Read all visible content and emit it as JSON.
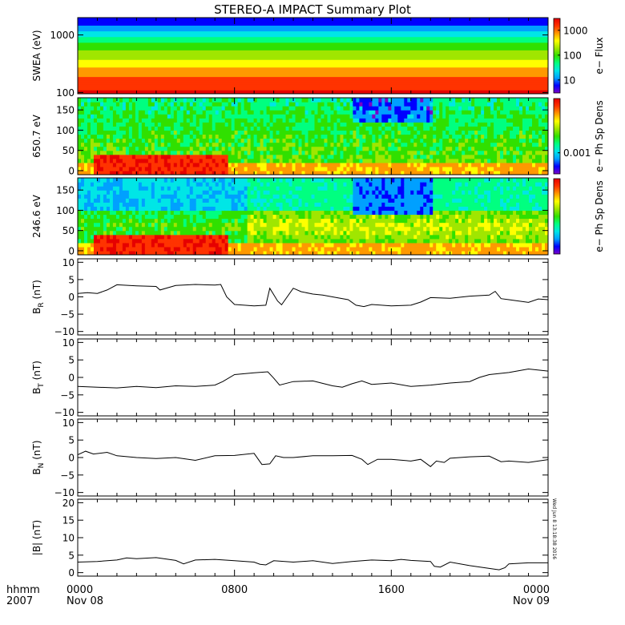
{
  "title": "STEREO-A IMPACT Summary Plot",
  "timestamp_vertical": "Wed Jun  8 13:18:38 2016",
  "x_axis": {
    "row1_label": "hhmm",
    "row2_label": "2007",
    "range_hours": [
      0,
      24
    ],
    "ticks": [
      {
        "hours": 0,
        "time": "0000",
        "date": "Nov 08"
      },
      {
        "hours": 8,
        "time": "0800",
        "date": ""
      },
      {
        "hours": 16,
        "time": "1600",
        "date": ""
      },
      {
        "hours": 24,
        "time": "0000",
        "date": "Nov 09"
      }
    ]
  },
  "colors": {
    "colormap": [
      "#7a00c8",
      "#0000ff",
      "#00a0ff",
      "#00e6e6",
      "#00ff80",
      "#30e000",
      "#a0e600",
      "#ffff00",
      "#ff9900",
      "#ff3300",
      "#e60000"
    ],
    "line": "#000000",
    "axes": "#000000"
  },
  "chart_data": [
    {
      "type": "heatmap",
      "name": "swea",
      "ylabel": "SWEA (eV)",
      "yscale": "log",
      "ylim": [
        95,
        2000
      ],
      "ytick_labels": [
        "100",
        "1000"
      ],
      "ytick_values": [
        100,
        1000
      ],
      "colorbar": {
        "label": "e− Flux",
        "scale": "log",
        "range": [
          3,
          3000
        ],
        "tick_labels": [
          "10",
          "100",
          "1000"
        ],
        "tick_values": [
          10,
          100,
          1000
        ]
      },
      "value_profile_by_energy": [
        [
          100,
          2500
        ],
        [
          150,
          1500
        ],
        [
          250,
          600
        ],
        [
          400,
          250
        ],
        [
          650,
          100
        ],
        [
          1000,
          30
        ],
        [
          1500,
          8
        ],
        [
          2000,
          4
        ]
      ]
    },
    {
      "type": "heatmap",
      "name": "pad650",
      "ylabel": "650.7 eV",
      "ylim": [
        -10,
        180
      ],
      "ytick_labels": [
        "0",
        "50",
        "100",
        "150"
      ],
      "ytick_values": [
        0,
        50,
        100,
        150
      ],
      "colorbar": {
        "label": "e− Ph Sp Dens",
        "tick_labels": [
          "0.001"
        ],
        "tick_values": [
          0.001
        ]
      }
    },
    {
      "type": "heatmap",
      "name": "pad246",
      "ylabel": "246.6 eV",
      "ylim": [
        -10,
        180
      ],
      "ytick_labels": [
        "0",
        "50",
        "100",
        "150"
      ],
      "ytick_values": [
        0,
        50,
        100,
        150
      ],
      "colorbar": {
        "label": "e− Ph Sp Dens",
        "tick_labels": [],
        "tick_values": []
      }
    },
    {
      "type": "line",
      "name": "br",
      "ylabel_main": "B",
      "ylabel_sub": "R",
      "ylabel_unit": " (nT)",
      "ylim": [
        -11,
        11
      ],
      "ytick_labels": [
        "−10",
        "−5",
        "0",
        "5",
        "10"
      ],
      "ytick_values": [
        -10,
        -5,
        0,
        5,
        10
      ],
      "x": [
        0,
        0.5,
        1,
        1.5,
        2,
        3,
        4,
        4.2,
        5,
        6,
        7,
        7.3,
        7.6,
        8,
        9,
        9.6,
        9.8,
        10.2,
        10.4,
        11,
        11.4,
        12,
        12.5,
        13,
        13.8,
        14.2,
        14.6,
        15,
        16,
        17,
        17.5,
        18,
        19,
        20,
        21,
        21.3,
        21.6,
        22,
        23,
        23.5,
        24
      ],
      "y": [
        1,
        1.2,
        1,
        2,
        3.5,
        3.2,
        3,
        2,
        3.3,
        3.6,
        3.4,
        3.6,
        0,
        -2.2,
        -2.6,
        -2.4,
        2.5,
        -1.2,
        -2.3,
        2.5,
        1.5,
        0.8,
        0.5,
        0,
        -0.8,
        -2.4,
        -2.8,
        -2.2,
        -2.6,
        -2.4,
        -1.5,
        -0.2,
        -0.4,
        0.2,
        0.5,
        1.6,
        -0.5,
        -0.8,
        -1.6,
        -0.6,
        -0.8
      ]
    },
    {
      "type": "line",
      "name": "bt",
      "ylabel_main": "B",
      "ylabel_sub": "T",
      "ylabel_unit": " (nT)",
      "ylim": [
        -11,
        11
      ],
      "ytick_labels": [
        "−10",
        "−5",
        "0",
        "5",
        "10"
      ],
      "ytick_values": [
        -10,
        -5,
        0,
        5,
        10
      ],
      "x": [
        0,
        1,
        2,
        3,
        4,
        5,
        6,
        7,
        7.4,
        8,
        9,
        9.7,
        10,
        10.3,
        11,
        12,
        13,
        13.5,
        14,
        14.5,
        15,
        16,
        17,
        18,
        19,
        20,
        20.5,
        21,
        22,
        23,
        24
      ],
      "y": [
        -2.6,
        -2.8,
        -3,
        -2.6,
        -2.9,
        -2.4,
        -2.6,
        -2.2,
        -1.2,
        0.8,
        1.3,
        1.6,
        -0.2,
        -2.2,
        -1.2,
        -1,
        -2.4,
        -2.8,
        -1.8,
        -1,
        -2,
        -1.6,
        -2.6,
        -2.2,
        -1.6,
        -1.2,
        0,
        0.8,
        1.4,
        2.4,
        1.8
      ]
    },
    {
      "type": "line",
      "name": "bn",
      "ylabel_main": "B",
      "ylabel_sub": "N",
      "ylabel_unit": " (nT)",
      "ylim": [
        -11,
        11
      ],
      "ytick_labels": [
        "−10",
        "−5",
        "0",
        "5",
        "10"
      ],
      "ytick_values": [
        -10,
        -5,
        0,
        5,
        10
      ],
      "x": [
        0,
        0.4,
        0.8,
        1.5,
        2,
        3,
        4,
        5,
        6,
        7,
        8,
        9,
        9.4,
        9.8,
        10.1,
        10.5,
        11,
        12,
        13,
        14,
        14.5,
        14.8,
        15.3,
        16,
        17,
        17.5,
        18,
        18.3,
        18.7,
        19,
        20,
        21,
        21.6,
        22,
        23,
        24
      ],
      "y": [
        0.8,
        1.8,
        1,
        1.5,
        0.5,
        0,
        -0.3,
        0,
        -0.8,
        0.5,
        0.6,
        1.2,
        -2,
        -1.8,
        0.5,
        0,
        0,
        0.5,
        0.5,
        0.6,
        -0.5,
        -2,
        -0.5,
        -0.5,
        -1,
        -0.5,
        -2.6,
        -1,
        -1.4,
        -0.2,
        0.2,
        0.4,
        -1.2,
        -1,
        -1.4,
        -0.6
      ]
    },
    {
      "type": "line",
      "name": "bmag",
      "ylabel_main": "|B|",
      "ylabel_sub": "",
      "ylabel_unit": " (nT)",
      "ylim": [
        -1,
        21
      ],
      "ytick_labels": [
        "0",
        "5",
        "10",
        "15",
        "20"
      ],
      "ytick_values": [
        0,
        5,
        10,
        15,
        20
      ],
      "x": [
        0,
        1,
        2,
        2.5,
        3,
        4,
        5,
        5.4,
        6,
        7,
        8,
        9,
        9.3,
        9.6,
        10,
        11,
        12,
        13,
        14,
        15,
        16,
        16.5,
        17,
        18,
        18.2,
        18.5,
        19,
        20,
        21,
        21.5,
        21.8,
        22,
        23,
        24
      ],
      "y": [
        3,
        3.2,
        3.6,
        4.2,
        4,
        4.3,
        3.5,
        2.5,
        3.6,
        3.8,
        3.4,
        3,
        2.4,
        2.2,
        3.4,
        3,
        3.4,
        2.6,
        3.2,
        3.6,
        3.4,
        3.8,
        3.5,
        3.2,
        1.8,
        1.6,
        3,
        2,
        1.2,
        0.8,
        1.4,
        2.5,
        2.8,
        2.8
      ]
    }
  ]
}
